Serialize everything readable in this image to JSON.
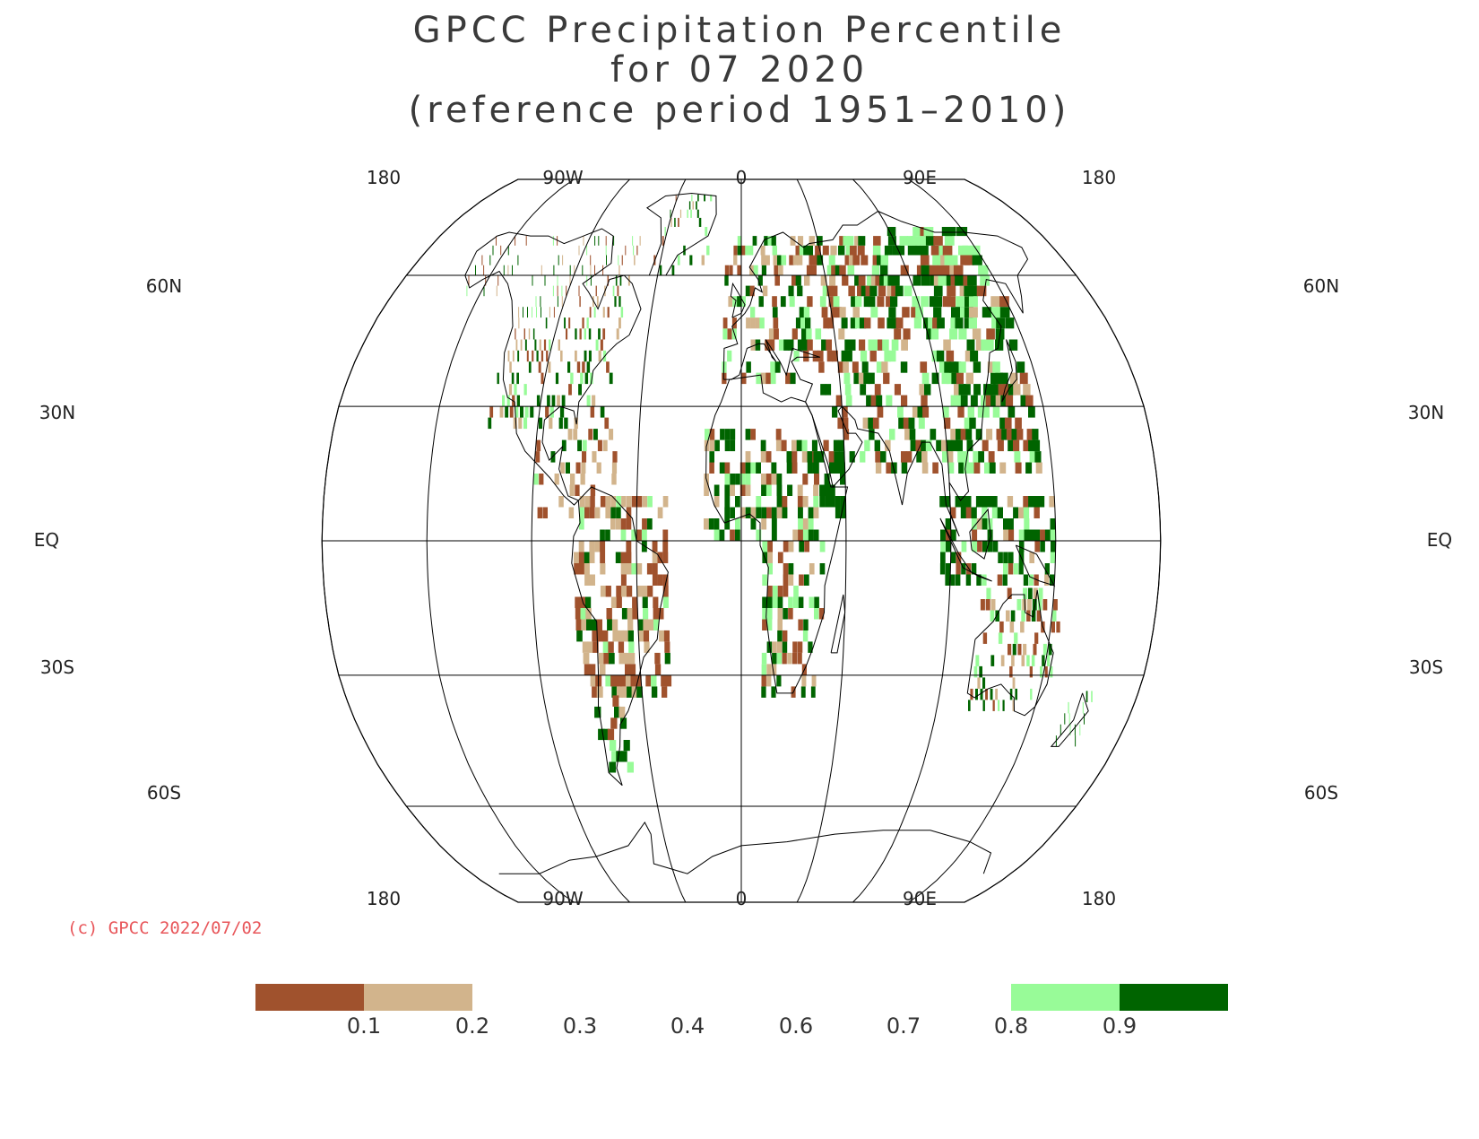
{
  "title": {
    "line1": "GPCC Precipitation Percentile",
    "line2": "for 07 2020",
    "line3": "(reference period 1951–2010)"
  },
  "map": {
    "projection": "Robinson",
    "central_meridian": "0",
    "top_lon_labels": [
      "180",
      "90W",
      "0",
      "90E",
      "180"
    ],
    "bottom_lon_labels": [
      "180",
      "90W",
      "0",
      "90E",
      "180"
    ],
    "lat_labels": [
      "60N",
      "30N",
      "EQ",
      "30S",
      "60S"
    ],
    "colors": {
      "dry_0_1": "#a0522d",
      "dry_0_2": "#d2b48c",
      "wet_0_8": "#98fb98",
      "wet_0_9": "#006400",
      "grid": "#000000"
    }
  },
  "copyright": "(c) GPCC 2022/07/02",
  "legend": {
    "ticks": [
      "0.1",
      "0.2",
      "0.3",
      "0.4",
      "0.6",
      "0.7",
      "0.8",
      "0.9"
    ],
    "bins": [
      {
        "color": "#a0522d"
      },
      {
        "color": "#d2b48c"
      },
      {
        "color": "#98fb98"
      },
      {
        "color": "#006400"
      }
    ]
  }
}
